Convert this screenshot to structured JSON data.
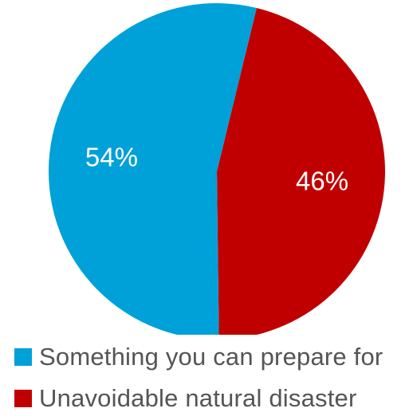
{
  "chart_data": {
    "type": "pie",
    "title": "",
    "slices": [
      {
        "label": "Something you can prepare for",
        "value": 54,
        "display": "54%",
        "color": "#00A0D8"
      },
      {
        "label": "Unavoidable natural disaster",
        "value": 46,
        "display": "46%",
        "color": "#C00000"
      }
    ],
    "data_label_color": "#ffffff",
    "legend_position": "bottom"
  }
}
